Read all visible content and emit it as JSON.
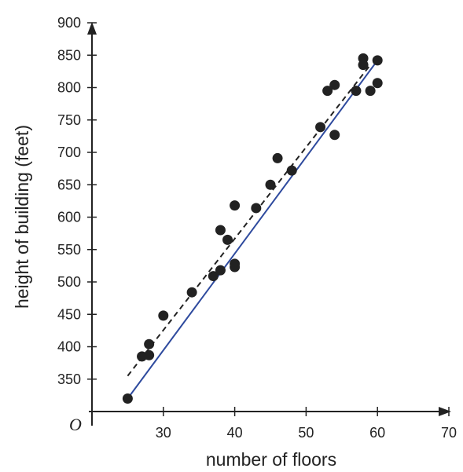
{
  "chart_data": {
    "type": "scatter",
    "xlabel": "number of floors",
    "ylabel": "height of building (feet)",
    "origin_label": "O",
    "xlim": [
      20,
      70
    ],
    "ylim": [
      300,
      900
    ],
    "x_ticks": [
      30,
      40,
      50,
      60,
      70
    ],
    "y_ticks": [
      350,
      400,
      450,
      500,
      550,
      600,
      650,
      700,
      750,
      800,
      850,
      900
    ],
    "grid": false,
    "points": [
      {
        "x": 25,
        "y": 320
      },
      {
        "x": 27,
        "y": 385
      },
      {
        "x": 28,
        "y": 387
      },
      {
        "x": 28,
        "y": 404
      },
      {
        "x": 30,
        "y": 448
      },
      {
        "x": 34,
        "y": 484
      },
      {
        "x": 37,
        "y": 509
      },
      {
        "x": 38,
        "y": 518
      },
      {
        "x": 38,
        "y": 580
      },
      {
        "x": 39,
        "y": 565
      },
      {
        "x": 40,
        "y": 528
      },
      {
        "x": 40,
        "y": 523
      },
      {
        "x": 40,
        "y": 618
      },
      {
        "x": 43,
        "y": 614
      },
      {
        "x": 45,
        "y": 650
      },
      {
        "x": 46,
        "y": 691
      },
      {
        "x": 48,
        "y": 672
      },
      {
        "x": 52,
        "y": 739
      },
      {
        "x": 53,
        "y": 795
      },
      {
        "x": 54,
        "y": 804
      },
      {
        "x": 54,
        "y": 727
      },
      {
        "x": 57,
        "y": 795
      },
      {
        "x": 58,
        "y": 845
      },
      {
        "x": 58,
        "y": 835
      },
      {
        "x": 59,
        "y": 795
      },
      {
        "x": 60,
        "y": 842
      },
      {
        "x": 60,
        "y": 807
      }
    ],
    "lines": [
      {
        "style": "solid",
        "color": "#2e4a9e",
        "from": {
          "x": 25,
          "y": 320
        },
        "to": {
          "x": 60,
          "y": 842
        }
      },
      {
        "style": "dashed",
        "color": "#222222",
        "from": {
          "x": 25,
          "y": 355
        },
        "to": {
          "x": 59,
          "y": 835
        }
      }
    ],
    "colors": {
      "points": "#222222",
      "axes": "#222222"
    }
  }
}
